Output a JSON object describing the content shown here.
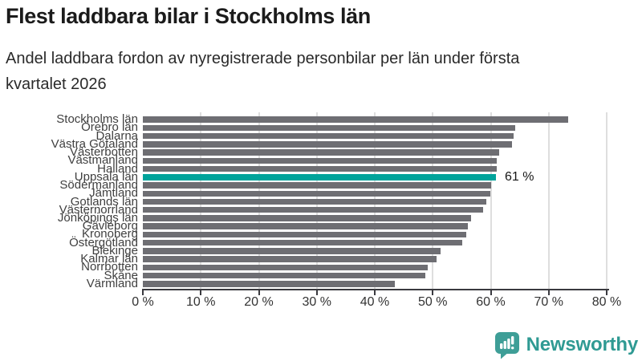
{
  "header": {
    "title": "Flest laddbara bilar i Stockholms län",
    "subtitle_lines": [
      "Andel laddbara fordon av nyregistrerade personbilar per län under första",
      "kvartalet 2026"
    ]
  },
  "chart_data": {
    "type": "bar",
    "orientation": "horizontal",
    "title": "Flest laddbara bilar i Stockholms län",
    "subtitle": "Andel laddbara fordon av nyregistrerade personbilar per län under första kvartalet 2026",
    "categories": [
      "Stockholms län",
      "Örebro län",
      "Dalarna",
      "Västra Götaland",
      "Västerbotten",
      "Västmanland",
      "Halland",
      "Uppsala län",
      "Södermanland",
      "Jämtland",
      "Gotlands län",
      "Västernorrland",
      "Jönköpings län",
      "Gävleborg",
      "Kronoberg",
      "Östergötland",
      "Blekinge",
      "Kalmar län",
      "Norrbotten",
      "Skåne",
      "Värmland"
    ],
    "values": [
      73.3,
      64.2,
      64.0,
      63.7,
      61.4,
      61.1,
      61.0,
      60.9,
      60.1,
      59.9,
      59.3,
      58.7,
      56.6,
      56.1,
      55.8,
      55.1,
      51.4,
      50.6,
      49.2,
      48.7,
      43.5
    ],
    "unit": "%",
    "xlabel": "",
    "ylabel": "",
    "xlim": [
      0,
      80
    ],
    "x_ticks": [
      "0 %",
      "10 %",
      "20 %",
      "30 %",
      "40 %",
      "50 %",
      "60 %",
      "70 %",
      "80 %"
    ],
    "grid": true,
    "legend": false,
    "highlight": {
      "category": "Uppsala län",
      "index": 7,
      "annotation": "61 %"
    },
    "colors": {
      "bar": "#6e6e73",
      "highlight": "#00a39b",
      "gridline": "#dedede",
      "axis": "#3a3a3f"
    }
  },
  "footer": {
    "brand": "Newsworthy",
    "brand_color": "#2f9a93",
    "logo_icon": "bar-chart-speech-bubble-icon"
  }
}
